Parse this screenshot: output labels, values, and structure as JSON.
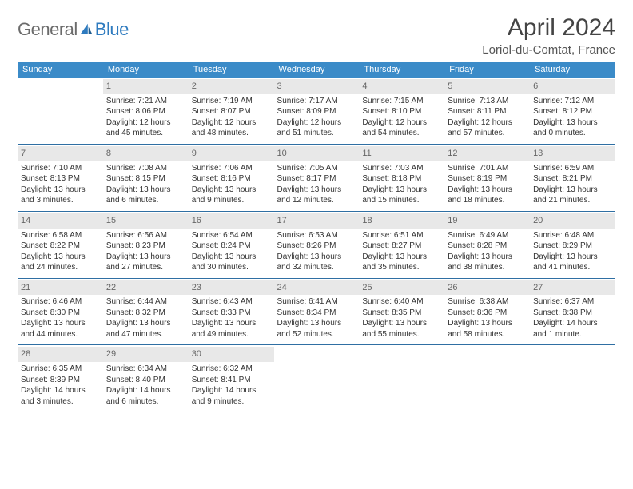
{
  "brand": {
    "general": "General",
    "blue": "Blue"
  },
  "title": "April 2024",
  "location": "Loriol-du-Comtat, France",
  "colors": {
    "header_bg": "#3b8bc8",
    "header_text": "#ffffff",
    "row_border": "#2f6fa3",
    "daynum_bg": "#e8e8e8",
    "daynum_text": "#666666",
    "body_text": "#333333",
    "logo_general": "#6b6b6b",
    "logo_blue": "#2f7bbf",
    "page_bg": "#ffffff"
  },
  "weekdays": [
    "Sunday",
    "Monday",
    "Tuesday",
    "Wednesday",
    "Thursday",
    "Friday",
    "Saturday"
  ],
  "weeks": [
    [
      null,
      {
        "n": "1",
        "a": "Sunrise: 7:21 AM",
        "b": "Sunset: 8:06 PM",
        "c": "Daylight: 12 hours and 45 minutes."
      },
      {
        "n": "2",
        "a": "Sunrise: 7:19 AM",
        "b": "Sunset: 8:07 PM",
        "c": "Daylight: 12 hours and 48 minutes."
      },
      {
        "n": "3",
        "a": "Sunrise: 7:17 AM",
        "b": "Sunset: 8:09 PM",
        "c": "Daylight: 12 hours and 51 minutes."
      },
      {
        "n": "4",
        "a": "Sunrise: 7:15 AM",
        "b": "Sunset: 8:10 PM",
        "c": "Daylight: 12 hours and 54 minutes."
      },
      {
        "n": "5",
        "a": "Sunrise: 7:13 AM",
        "b": "Sunset: 8:11 PM",
        "c": "Daylight: 12 hours and 57 minutes."
      },
      {
        "n": "6",
        "a": "Sunrise: 7:12 AM",
        "b": "Sunset: 8:12 PM",
        "c": "Daylight: 13 hours and 0 minutes."
      }
    ],
    [
      {
        "n": "7",
        "a": "Sunrise: 7:10 AM",
        "b": "Sunset: 8:13 PM",
        "c": "Daylight: 13 hours and 3 minutes."
      },
      {
        "n": "8",
        "a": "Sunrise: 7:08 AM",
        "b": "Sunset: 8:15 PM",
        "c": "Daylight: 13 hours and 6 minutes."
      },
      {
        "n": "9",
        "a": "Sunrise: 7:06 AM",
        "b": "Sunset: 8:16 PM",
        "c": "Daylight: 13 hours and 9 minutes."
      },
      {
        "n": "10",
        "a": "Sunrise: 7:05 AM",
        "b": "Sunset: 8:17 PM",
        "c": "Daylight: 13 hours and 12 minutes."
      },
      {
        "n": "11",
        "a": "Sunrise: 7:03 AM",
        "b": "Sunset: 8:18 PM",
        "c": "Daylight: 13 hours and 15 minutes."
      },
      {
        "n": "12",
        "a": "Sunrise: 7:01 AM",
        "b": "Sunset: 8:19 PM",
        "c": "Daylight: 13 hours and 18 minutes."
      },
      {
        "n": "13",
        "a": "Sunrise: 6:59 AM",
        "b": "Sunset: 8:21 PM",
        "c": "Daylight: 13 hours and 21 minutes."
      }
    ],
    [
      {
        "n": "14",
        "a": "Sunrise: 6:58 AM",
        "b": "Sunset: 8:22 PM",
        "c": "Daylight: 13 hours and 24 minutes."
      },
      {
        "n": "15",
        "a": "Sunrise: 6:56 AM",
        "b": "Sunset: 8:23 PM",
        "c": "Daylight: 13 hours and 27 minutes."
      },
      {
        "n": "16",
        "a": "Sunrise: 6:54 AM",
        "b": "Sunset: 8:24 PM",
        "c": "Daylight: 13 hours and 30 minutes."
      },
      {
        "n": "17",
        "a": "Sunrise: 6:53 AM",
        "b": "Sunset: 8:26 PM",
        "c": "Daylight: 13 hours and 32 minutes."
      },
      {
        "n": "18",
        "a": "Sunrise: 6:51 AM",
        "b": "Sunset: 8:27 PM",
        "c": "Daylight: 13 hours and 35 minutes."
      },
      {
        "n": "19",
        "a": "Sunrise: 6:49 AM",
        "b": "Sunset: 8:28 PM",
        "c": "Daylight: 13 hours and 38 minutes."
      },
      {
        "n": "20",
        "a": "Sunrise: 6:48 AM",
        "b": "Sunset: 8:29 PM",
        "c": "Daylight: 13 hours and 41 minutes."
      }
    ],
    [
      {
        "n": "21",
        "a": "Sunrise: 6:46 AM",
        "b": "Sunset: 8:30 PM",
        "c": "Daylight: 13 hours and 44 minutes."
      },
      {
        "n": "22",
        "a": "Sunrise: 6:44 AM",
        "b": "Sunset: 8:32 PM",
        "c": "Daylight: 13 hours and 47 minutes."
      },
      {
        "n": "23",
        "a": "Sunrise: 6:43 AM",
        "b": "Sunset: 8:33 PM",
        "c": "Daylight: 13 hours and 49 minutes."
      },
      {
        "n": "24",
        "a": "Sunrise: 6:41 AM",
        "b": "Sunset: 8:34 PM",
        "c": "Daylight: 13 hours and 52 minutes."
      },
      {
        "n": "25",
        "a": "Sunrise: 6:40 AM",
        "b": "Sunset: 8:35 PM",
        "c": "Daylight: 13 hours and 55 minutes."
      },
      {
        "n": "26",
        "a": "Sunrise: 6:38 AM",
        "b": "Sunset: 8:36 PM",
        "c": "Daylight: 13 hours and 58 minutes."
      },
      {
        "n": "27",
        "a": "Sunrise: 6:37 AM",
        "b": "Sunset: 8:38 PM",
        "c": "Daylight: 14 hours and 1 minute."
      }
    ],
    [
      {
        "n": "28",
        "a": "Sunrise: 6:35 AM",
        "b": "Sunset: 8:39 PM",
        "c": "Daylight: 14 hours and 3 minutes."
      },
      {
        "n": "29",
        "a": "Sunrise: 6:34 AM",
        "b": "Sunset: 8:40 PM",
        "c": "Daylight: 14 hours and 6 minutes."
      },
      {
        "n": "30",
        "a": "Sunrise: 6:32 AM",
        "b": "Sunset: 8:41 PM",
        "c": "Daylight: 14 hours and 9 minutes."
      },
      null,
      null,
      null,
      null
    ]
  ]
}
